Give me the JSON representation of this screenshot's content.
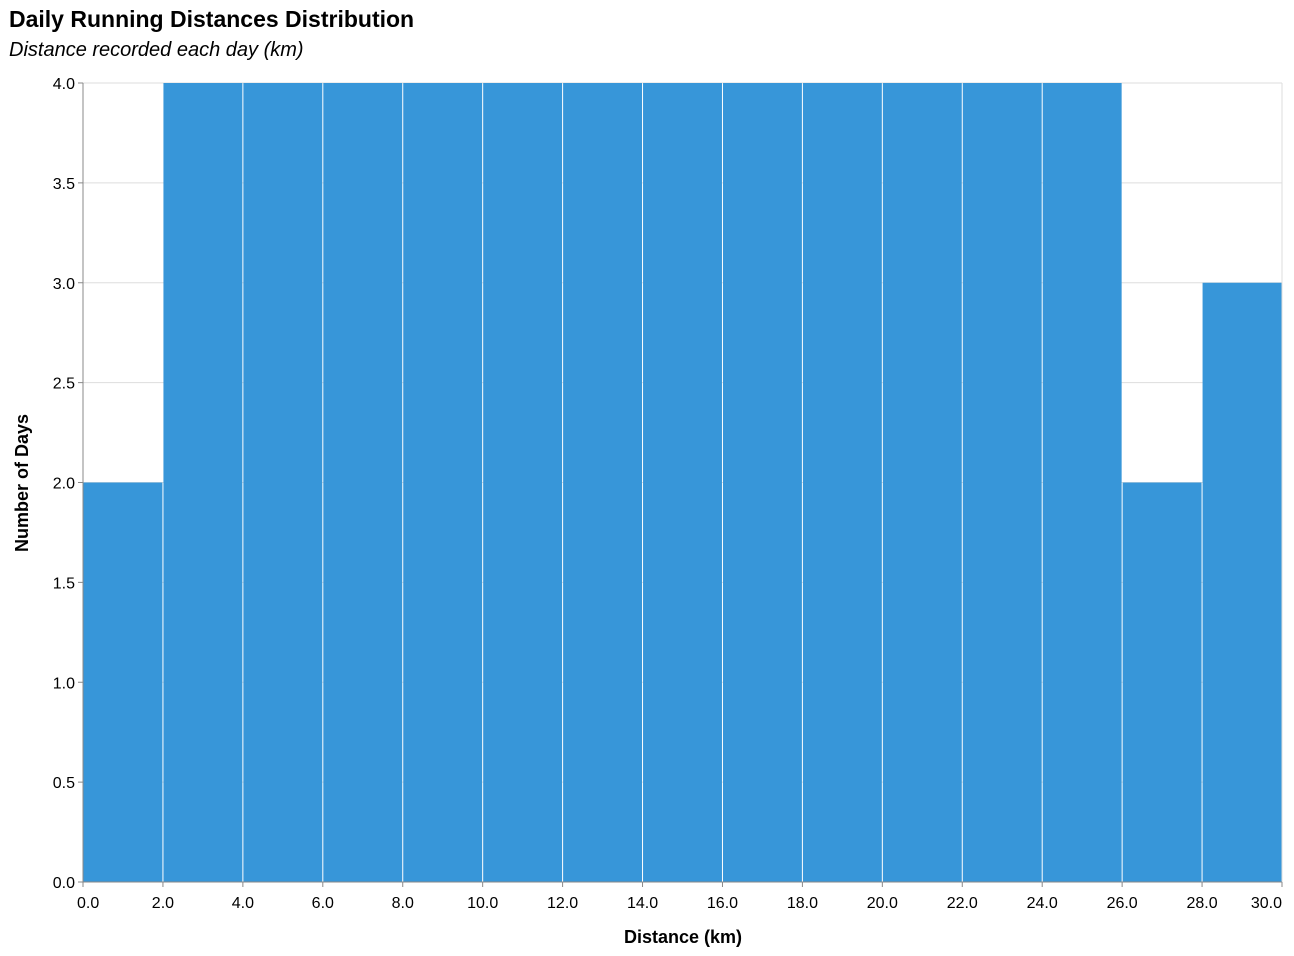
{
  "chart_data": {
    "type": "bar",
    "title": "Daily Running Distances Distribution",
    "subtitle": "Distance recorded each day (km)",
    "xlabel": "Distance (km)",
    "ylabel": "Number of Days",
    "bins": [
      {
        "x0": 0,
        "x1": 2,
        "count": 2
      },
      {
        "x0": 2,
        "x1": 4,
        "count": 4
      },
      {
        "x0": 4,
        "x1": 6,
        "count": 4
      },
      {
        "x0": 6,
        "x1": 8,
        "count": 4
      },
      {
        "x0": 8,
        "x1": 10,
        "count": 4
      },
      {
        "x0": 10,
        "x1": 12,
        "count": 4
      },
      {
        "x0": 12,
        "x1": 14,
        "count": 4
      },
      {
        "x0": 14,
        "x1": 16,
        "count": 4
      },
      {
        "x0": 16,
        "x1": 18,
        "count": 4
      },
      {
        "x0": 18,
        "x1": 20,
        "count": 4
      },
      {
        "x0": 20,
        "x1": 22,
        "count": 4
      },
      {
        "x0": 22,
        "x1": 24,
        "count": 4
      },
      {
        "x0": 24,
        "x1": 26,
        "count": 4
      },
      {
        "x0": 26,
        "x1": 28,
        "count": 2
      },
      {
        "x0": 28,
        "x1": 30,
        "count": 3
      }
    ],
    "xlim": [
      0,
      30
    ],
    "ylim": [
      0,
      4
    ],
    "x_ticks": [
      "0.0",
      "2.0",
      "4.0",
      "6.0",
      "8.0",
      "10.0",
      "12.0",
      "14.0",
      "16.0",
      "18.0",
      "20.0",
      "22.0",
      "24.0",
      "26.0",
      "28.0",
      "30.0"
    ],
    "y_ticks": [
      "0.0",
      "0.5",
      "1.0",
      "1.5",
      "2.0",
      "2.5",
      "3.0",
      "3.5",
      "4.0"
    ],
    "grid": true,
    "bar_color": "#3796d9"
  }
}
